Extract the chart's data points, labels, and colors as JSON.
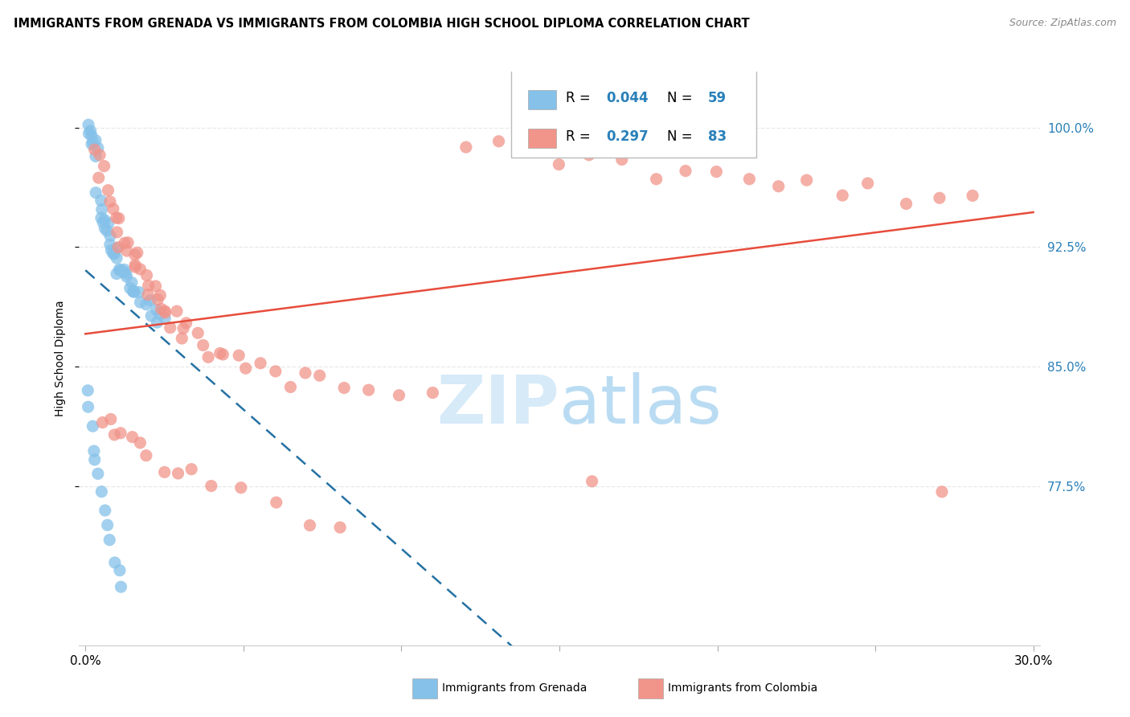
{
  "title": "IMMIGRANTS FROM GRENADA VS IMMIGRANTS FROM COLOMBIA HIGH SCHOOL DIPLOMA CORRELATION CHART",
  "source": "Source: ZipAtlas.com",
  "ylabel": "High School Diploma",
  "y_ticks": [
    "77.5%",
    "85.0%",
    "92.5%",
    "100.0%"
  ],
  "y_tick_vals": [
    0.775,
    0.85,
    0.925,
    1.0
  ],
  "x_lim": [
    -0.002,
    0.302
  ],
  "y_lim": [
    0.675,
    1.035
  ],
  "R_grenada": 0.044,
  "N_grenada": 59,
  "R_colombia": 0.297,
  "N_colombia": 83,
  "color_grenada": "#85C1E9",
  "color_colombia": "#F1948A",
  "color_blue": "#2471A3",
  "color_pink": "#E74C3C",
  "color_text_right": "#2980B9",
  "grenada_x": [
    0.001,
    0.001,
    0.001,
    0.002,
    0.002,
    0.002,
    0.003,
    0.003,
    0.004,
    0.004,
    0.005,
    0.005,
    0.005,
    0.006,
    0.006,
    0.006,
    0.007,
    0.007,
    0.008,
    0.008,
    0.008,
    0.009,
    0.009,
    0.01,
    0.01,
    0.01,
    0.011,
    0.011,
    0.012,
    0.012,
    0.013,
    0.013,
    0.014,
    0.014,
    0.015,
    0.015,
    0.016,
    0.017,
    0.018,
    0.019,
    0.02,
    0.021,
    0.022,
    0.023,
    0.024,
    0.025,
    0.001,
    0.001,
    0.002,
    0.003,
    0.003,
    0.004,
    0.005,
    0.006,
    0.007,
    0.008,
    0.009,
    0.01,
    0.011
  ],
  "grenada_y": [
    1.0,
    0.999,
    0.997,
    0.995,
    0.993,
    0.99,
    0.988,
    0.985,
    0.983,
    0.96,
    0.956,
    0.95,
    0.945,
    0.943,
    0.94,
    0.938,
    0.936,
    0.933,
    0.93,
    0.928,
    0.926,
    0.924,
    0.922,
    0.92,
    0.918,
    0.916,
    0.914,
    0.912,
    0.91,
    0.908,
    0.906,
    0.904,
    0.902,
    0.9,
    0.898,
    0.896,
    0.894,
    0.892,
    0.89,
    0.888,
    0.887,
    0.885,
    0.883,
    0.88,
    0.878,
    0.876,
    0.83,
    0.82,
    0.81,
    0.8,
    0.79,
    0.78,
    0.77,
    0.76,
    0.75,
    0.74,
    0.73,
    0.72,
    0.71
  ],
  "colombia_x": [
    0.003,
    0.004,
    0.005,
    0.005,
    0.006,
    0.007,
    0.008,
    0.009,
    0.01,
    0.01,
    0.011,
    0.012,
    0.013,
    0.014,
    0.015,
    0.015,
    0.016,
    0.017,
    0.018,
    0.019,
    0.02,
    0.021,
    0.022,
    0.023,
    0.024,
    0.025,
    0.025,
    0.026,
    0.027,
    0.028,
    0.03,
    0.032,
    0.033,
    0.035,
    0.038,
    0.04,
    0.042,
    0.045,
    0.048,
    0.05,
    0.055,
    0.06,
    0.065,
    0.07,
    0.075,
    0.08,
    0.09,
    0.1,
    0.11,
    0.12,
    0.13,
    0.14,
    0.15,
    0.16,
    0.17,
    0.18,
    0.19,
    0.2,
    0.21,
    0.22,
    0.23,
    0.24,
    0.25,
    0.26,
    0.27,
    0.28,
    0.005,
    0.008,
    0.01,
    0.012,
    0.015,
    0.018,
    0.02,
    0.025,
    0.03,
    0.035,
    0.04,
    0.05,
    0.06,
    0.07,
    0.08,
    0.16,
    0.27
  ],
  "colombia_y": [
    0.99,
    0.985,
    0.975,
    0.97,
    0.96,
    0.955,
    0.95,
    0.945,
    0.94,
    0.935,
    0.93,
    0.928,
    0.925,
    0.922,
    0.92,
    0.915,
    0.912,
    0.91,
    0.908,
    0.905,
    0.902,
    0.9,
    0.895,
    0.892,
    0.89,
    0.888,
    0.885,
    0.882,
    0.88,
    0.878,
    0.875,
    0.872,
    0.87,
    0.868,
    0.865,
    0.862,
    0.86,
    0.858,
    0.855,
    0.852,
    0.85,
    0.848,
    0.845,
    0.842,
    0.84,
    0.838,
    0.836,
    0.834,
    0.832,
    0.99,
    0.988,
    0.985,
    0.982,
    0.98,
    0.978,
    0.975,
    0.972,
    0.97,
    0.968,
    0.965,
    0.962,
    0.96,
    0.958,
    0.955,
    0.952,
    0.95,
    0.82,
    0.815,
    0.81,
    0.805,
    0.8,
    0.795,
    0.79,
    0.785,
    0.78,
    0.775,
    0.77,
    0.765,
    0.76,
    0.755,
    0.75,
    0.775,
    0.775
  ],
  "grid_color": "#E8E8E8",
  "grid_style": "--"
}
